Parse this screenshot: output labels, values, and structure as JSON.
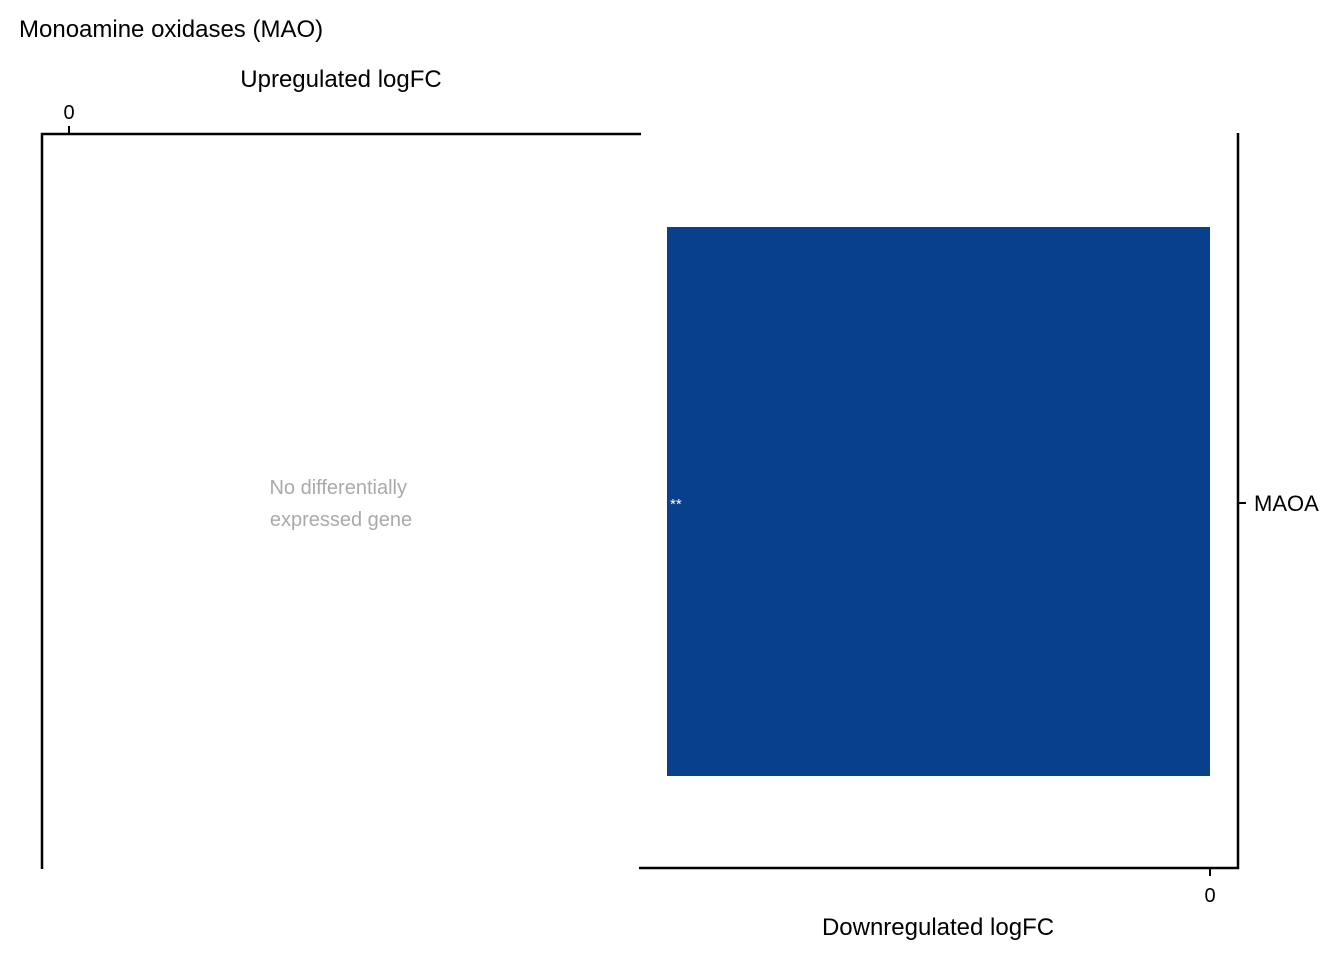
{
  "chart_data": {
    "type": "bar",
    "orientation": "horizontal",
    "title": "Monoamine oxidases (MAO)",
    "panels": [
      {
        "id": "upregulated",
        "xlabel": "Upregulated logFC",
        "x_ticks": [
          "0"
        ],
        "empty_message_lines": [
          "No differentially",
          "expressed gene"
        ],
        "categories": [],
        "values": []
      },
      {
        "id": "downregulated",
        "xlabel": "Downregulated logFC",
        "x_ticks": [
          "0"
        ],
        "categories": [
          "MAOA"
        ],
        "values": [
          -1
        ],
        "annotations": [
          "**"
        ],
        "color": "#08408c"
      }
    ],
    "colors": {
      "axis": "#000000",
      "empty_message": "#aaaaaa",
      "annotation": "#ffffff"
    }
  }
}
